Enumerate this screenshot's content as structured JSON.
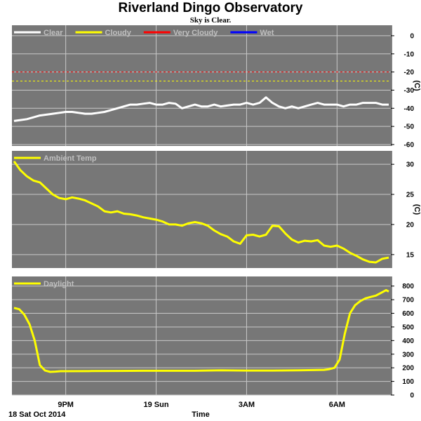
{
  "header": {
    "title": "Riverland Dingo Observatory",
    "subtitle": "Sky is Clear."
  },
  "colors": {
    "panel": "#777777",
    "grid": "#c8c8c8",
    "legend_text": "#c0c0c0",
    "axis": "#000000",
    "clear": "#ffffff",
    "cloudy": "#ffff00",
    "very_cloudy": "#ff0000",
    "wet": "#0000ff"
  },
  "footer": {
    "date_label": "18 Sat Oct 2014",
    "xlabel": "Time"
  },
  "chart_data": [
    {
      "type": "line",
      "ylabel": "(C)",
      "ylim": [
        -60,
        5
      ],
      "yticks": [
        0,
        -10,
        -20,
        -30,
        -40,
        -50,
        -60
      ],
      "grid": true,
      "legend_placement": "top-left",
      "series": [
        {
          "name": "Clear",
          "color": "#ffffff",
          "x": [
            0,
            0.25,
            0.5,
            0.75,
            1.0,
            1.25,
            1.5,
            1.75,
            2.0,
            2.25,
            2.5,
            2.75,
            3.0,
            3.25,
            3.5,
            3.75,
            4.0,
            4.25,
            4.5,
            4.75,
            5.0,
            5.25,
            5.5,
            5.75,
            6.0,
            6.25,
            6.5,
            6.75,
            7.0,
            7.25,
            7.5,
            7.75,
            8.0,
            8.25,
            8.5,
            8.75,
            9.0,
            9.25,
            9.5,
            9.75,
            10.0,
            10.25,
            10.5,
            10.75,
            11.0,
            11.25,
            11.5,
            11.75,
            12.0,
            12.25,
            12.5,
            12.75,
            13.0,
            13.25,
            13.5,
            13.75,
            14.0,
            14.25,
            14.5
          ],
          "y": [
            -47,
            -46.5,
            -46,
            -45,
            -44,
            -43.5,
            -43,
            -42.5,
            -42,
            -42,
            -42.5,
            -43,
            -43,
            -42.5,
            -42,
            -41,
            -40,
            -39,
            -38,
            -38,
            -37.5,
            -37,
            -38,
            -38,
            -37,
            -37.5,
            -40,
            -39,
            -38,
            -39,
            -39,
            -38,
            -39,
            -38.5,
            -38,
            -38,
            -37,
            -38,
            -37,
            -34,
            -37,
            -39,
            -40,
            -39,
            -40,
            -39,
            -38,
            -37,
            -38,
            -38,
            -38,
            -39,
            -38,
            -38,
            -37,
            -37,
            -37,
            -38,
            -38
          ]
        },
        {
          "name": "Cloudy",
          "color": "#ffff00",
          "threshold": -25
        },
        {
          "name": "Very Cloudy",
          "color": "#ff0000",
          "threshold": -20
        },
        {
          "name": "Wet",
          "color": "#0000ff"
        }
      ]
    },
    {
      "type": "line",
      "ylabel": "(C)",
      "ylim": [
        13,
        32
      ],
      "yticks": [
        30,
        25,
        20,
        15
      ],
      "grid": true,
      "legend_placement": "top-left",
      "series": [
        {
          "name": "Ambient Temp",
          "color": "#ffff00",
          "x": [
            0,
            0.25,
            0.5,
            0.75,
            1.0,
            1.25,
            1.5,
            1.75,
            2.0,
            2.25,
            2.5,
            2.75,
            3.0,
            3.25,
            3.5,
            3.75,
            4.0,
            4.25,
            4.5,
            4.75,
            5.0,
            5.25,
            5.5,
            5.75,
            6.0,
            6.25,
            6.5,
            6.75,
            7.0,
            7.25,
            7.5,
            7.75,
            8.0,
            8.25,
            8.5,
            8.75,
            9.0,
            9.25,
            9.5,
            9.75,
            10.0,
            10.25,
            10.5,
            10.75,
            11.0,
            11.25,
            11.5,
            11.75,
            12.0,
            12.25,
            12.5,
            12.75,
            13.0,
            13.25,
            13.5,
            13.75,
            14.0,
            14.25,
            14.5
          ],
          "y": [
            30.5,
            29,
            28,
            27.3,
            27,
            26,
            25,
            24.4,
            24.2,
            24.5,
            24.3,
            24,
            23.5,
            23,
            22.2,
            22.0,
            22.2,
            21.8,
            21.7,
            21.5,
            21.2,
            21.0,
            20.8,
            20.5,
            20.0,
            20.0,
            19.8,
            20.2,
            20.4,
            20.2,
            19.8,
            19.0,
            18.4,
            18.0,
            17.2,
            16.8,
            18.2,
            18.3,
            18.0,
            18.3,
            19.8,
            19.7,
            18.5,
            17.5,
            17.0,
            17.3,
            17.2,
            17.4,
            16.5,
            16.3,
            16.5,
            16.0,
            15.3,
            14.8,
            14.2,
            13.8,
            13.7,
            14.3,
            14.5
          ]
        }
      ]
    },
    {
      "type": "line",
      "ylim": [
        0,
        850
      ],
      "yticks": [
        800,
        700,
        600,
        500,
        400,
        300,
        200,
        100,
        0
      ],
      "grid": true,
      "legend_placement": "top-left",
      "series": [
        {
          "name": "Daylight",
          "color": "#ffff00",
          "x": [
            0,
            0.2,
            0.4,
            0.6,
            0.8,
            1.0,
            1.2,
            1.4,
            1.6,
            1.8,
            2.0,
            3,
            4,
            5,
            6,
            7,
            8,
            9,
            10,
            11,
            12,
            12.2,
            12.4,
            12.6,
            12.8,
            13.0,
            13.2,
            13.4,
            13.6,
            13.8,
            14.0,
            14.2,
            14.4,
            14.5
          ],
          "y": [
            640,
            630,
            590,
            520,
            400,
            220,
            180,
            170,
            172,
            175,
            175,
            176,
            177,
            178,
            178,
            178,
            182,
            180,
            180,
            182,
            185,
            190,
            200,
            260,
            450,
            600,
            660,
            690,
            710,
            720,
            730,
            750,
            770,
            760
          ]
        }
      ]
    }
  ],
  "x_axis": {
    "range": [
      0,
      14.5
    ],
    "ticks": [
      {
        "x": 2.0,
        "label": "9PM"
      },
      {
        "x": 5.5,
        "label": "19 Sun"
      },
      {
        "x": 9.0,
        "label": "3AM"
      },
      {
        "x": 12.5,
        "label": "6AM"
      }
    ]
  }
}
